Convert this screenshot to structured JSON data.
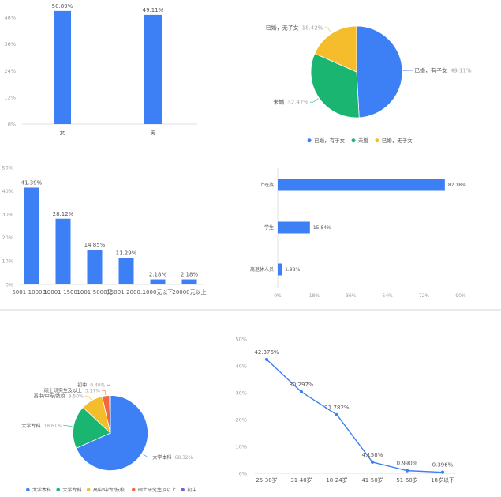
{
  "chart_data": [
    {
      "type": "bar",
      "categories": [
        "女",
        "男"
      ],
      "values": [
        50.89,
        49.11
      ],
      "value_labels": [
        "50.89%",
        "49.11%"
      ],
      "ytick_labels": [
        "0%",
        "12%",
        "24%",
        "36%",
        "48%"
      ],
      "ylim": [
        0,
        48
      ],
      "grid": false,
      "colors": {
        "bar": "#3d7ff5"
      }
    },
    {
      "type": "pie",
      "categories": [
        "已婚，有子女",
        "未婚",
        "已婚，无子女"
      ],
      "values": [
        49.11,
        32.47,
        18.42
      ],
      "value_labels": [
        "49.11%",
        "32.47%",
        "18.42%"
      ],
      "legend": "bottom",
      "colors": [
        "#3d7ff5",
        "#1bb572",
        "#f5bd2c"
      ]
    },
    {
      "type": "bar",
      "categories": [
        "5001-10000...",
        "10001-1500...",
        "1001-5000元",
        "15001-2000...",
        "1000元以下",
        "20000元以上"
      ],
      "values": [
        41.39,
        28.12,
        14.85,
        11.29,
        2.18,
        2.18
      ],
      "value_labels": [
        "41.39%",
        "28.12%",
        "14.85%",
        "11.29%",
        "2.18%",
        "2.18%"
      ],
      "ytick_labels": [
        "0%",
        "10%",
        "20%",
        "30%",
        "40%",
        "50%"
      ],
      "ylim": [
        0,
        50
      ],
      "grid": false,
      "colors": {
        "bar": "#3d7ff5"
      }
    },
    {
      "type": "bar",
      "orientation": "horizontal",
      "categories": [
        "上班族",
        "学生",
        "离退休人员"
      ],
      "values": [
        82.18,
        15.84,
        1.98
      ],
      "value_labels": [
        "82.18%",
        "15.84%",
        "1.98%"
      ],
      "xtick_labels": [
        "0%",
        "18%",
        "36%",
        "54%",
        "72%",
        "90%"
      ],
      "xlim": [
        0,
        90
      ],
      "grid": false,
      "colors": {
        "bar": "#3d7ff5"
      }
    },
    {
      "type": "pie",
      "categories": [
        "大学本科",
        "大学专科",
        "高中/中专/技校",
        "硕士研究生及以上",
        "初中"
      ],
      "values": [
        68.32,
        18.61,
        9.5,
        3.17,
        0.4
      ],
      "value_labels": [
        "68.32%",
        "18.61%",
        "9.50%",
        "3.17%",
        "0.40%"
      ],
      "legend": "bottom",
      "colors": [
        "#3d7ff5",
        "#1bb572",
        "#f5bd2c",
        "#f2673f",
        "#7b5ed6"
      ]
    },
    {
      "type": "line",
      "categories": [
        "25-30岁",
        "31-40岁",
        "18-24岁",
        "41-50岁",
        "51-60岁",
        "18岁以下"
      ],
      "values": [
        42.376,
        30.297,
        21.782,
        4.158,
        0.99,
        0.396
      ],
      "value_labels": [
        "42.376%",
        "30.297%",
        "21.782%",
        "4.158%",
        "0.990%",
        "0.396%"
      ],
      "ytick_labels": [
        "0%",
        "10%",
        "20%",
        "30%",
        "40%",
        "50%"
      ],
      "ylim": [
        0,
        50
      ],
      "grid": false,
      "color": "#3d7ff5"
    }
  ]
}
